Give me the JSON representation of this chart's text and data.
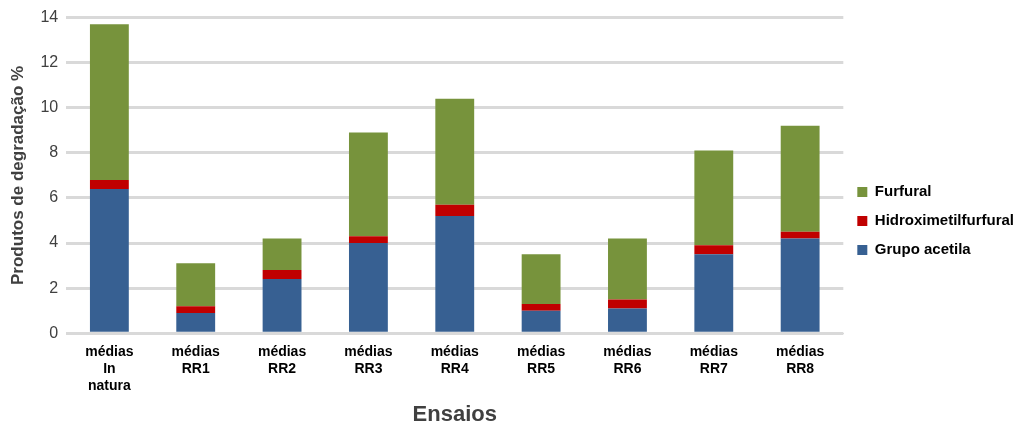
{
  "chart_data": {
    "type": "bar",
    "stacked": true,
    "xlabel": "Ensaios",
    "ylabel": "Produtos de degradação %",
    "categories": [
      "médias\nIn\nnatura",
      "médias\nRR1",
      "médias\nRR2",
      "médias\nRR3",
      "médias\nRR4",
      "médias\nRR5",
      "médias\nRR6",
      "médias\nRR7",
      "médias\nRR8"
    ],
    "series": [
      {
        "name": "Grupo acetila",
        "color": "#376092",
        "values": [
          6.4,
          0.9,
          2.4,
          4.0,
          5.2,
          1.0,
          1.1,
          3.5,
          4.2
        ]
      },
      {
        "name": "Hidroximetilfurfural",
        "color": "#c00000",
        "values": [
          0.4,
          0.3,
          0.4,
          0.3,
          0.5,
          0.3,
          0.4,
          0.4,
          0.3
        ]
      },
      {
        "name": "Furfural",
        "color": "#77933c",
        "values": [
          6.9,
          1.9,
          1.4,
          4.6,
          4.7,
          2.2,
          2.7,
          4.2,
          4.7
        ]
      }
    ],
    "ylim": [
      0,
      14
    ],
    "yticks": [
      0,
      2,
      4,
      6,
      8,
      10,
      12,
      14
    ],
    "grid": "y",
    "legend": "right"
  }
}
